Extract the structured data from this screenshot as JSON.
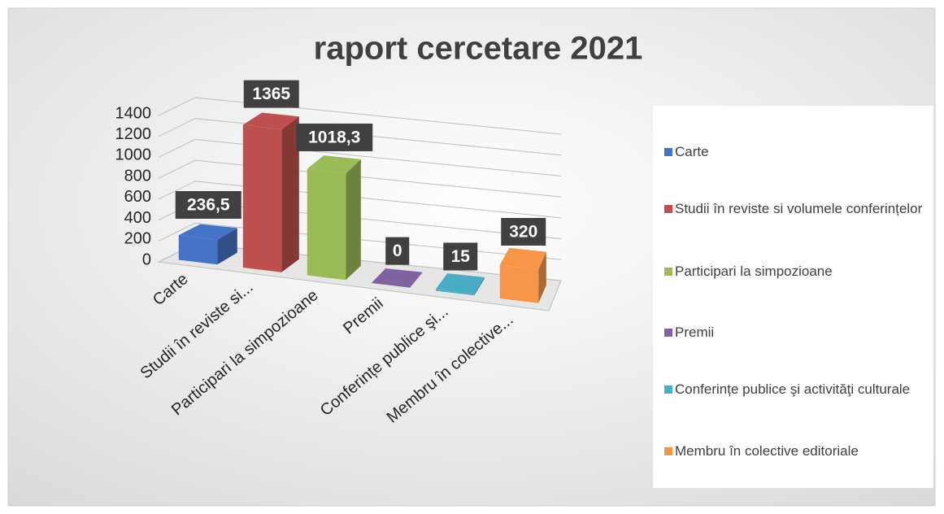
{
  "chart_data": {
    "type": "bar3d",
    "title": "raport cercetare 2021",
    "categories": [
      "Carte",
      "Studii în reviste si volumele conferințelor",
      "Participari la simpozioane",
      "Premii",
      "Conferințe publice şi activităţi culturale",
      "Membru în colective editoriale"
    ],
    "category_labels": [
      "Carte",
      "Studii în reviste si...",
      "Participari la simpozioane",
      "Premii",
      "Conferințe publice şi...",
      "Membru în colective..."
    ],
    "values": [
      236.5,
      1365,
      1018.3,
      0,
      15,
      320
    ],
    "value_labels": [
      "236,5",
      "1365",
      "1018,3",
      "0",
      "15",
      "320"
    ],
    "colors": [
      "#4472c4",
      "#c0504d",
      "#9bbb59",
      "#8064a2",
      "#4bacc6",
      "#f79646"
    ],
    "ylim": [
      0,
      1400
    ],
    "yticks": [
      0,
      200,
      400,
      600,
      800,
      1000,
      1200,
      1400
    ],
    "grid": true,
    "legend": "right"
  }
}
